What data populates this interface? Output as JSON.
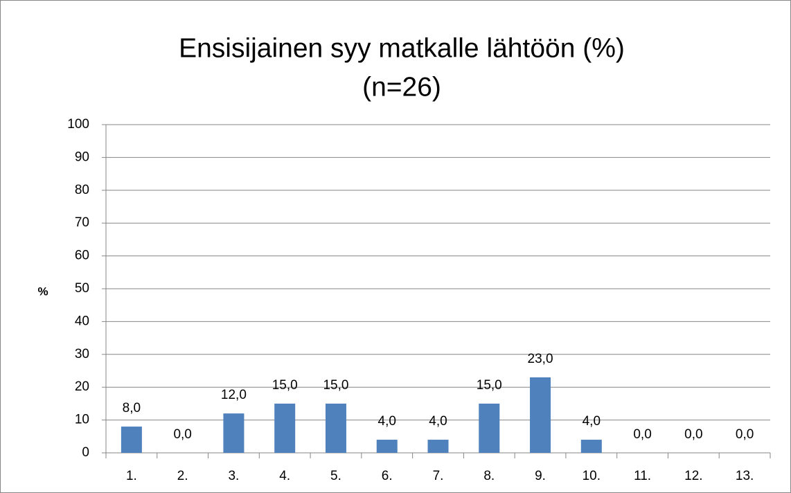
{
  "chart_data": {
    "type": "bar",
    "title": "Ensisijainen syy matkalle lähtöön (%)",
    "subtitle": "(n=26)",
    "ylabel": "%",
    "categories": [
      "1.",
      "2.",
      "3.",
      "4.",
      "5.",
      "6.",
      "7.",
      "8.",
      "9.",
      "10.",
      "11.",
      "12.",
      "13."
    ],
    "values": [
      8,
      0,
      12,
      15,
      15,
      4,
      4,
      15,
      23,
      4,
      0,
      0,
      0
    ],
    "value_labels": [
      "8,0",
      "0,0",
      "12,0",
      "15,0",
      "15,0",
      "4,0",
      "4,0",
      "15,0",
      "23,0",
      "4,0",
      "0,0",
      "0,0",
      "0,0"
    ],
    "color": "#4f81bd",
    "ylim": [
      0,
      100
    ],
    "yticks": [
      0,
      10,
      20,
      30,
      40,
      50,
      60,
      70,
      80,
      90,
      100
    ],
    "grid": true
  }
}
